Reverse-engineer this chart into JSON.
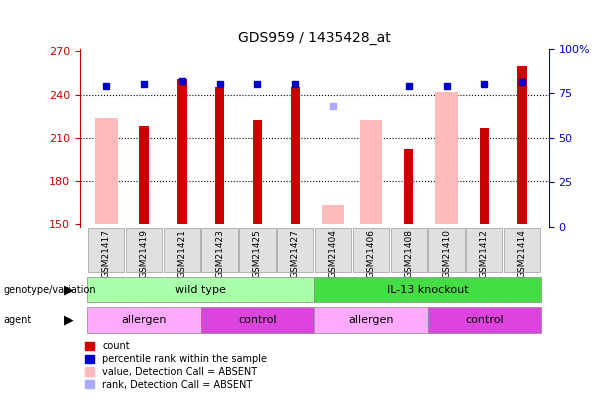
{
  "title": "GDS959 / 1435428_at",
  "samples": [
    "GSM21417",
    "GSM21419",
    "GSM21421",
    "GSM21423",
    "GSM21425",
    "GSM21427",
    "GSM21404",
    "GSM21406",
    "GSM21408",
    "GSM21410",
    "GSM21412",
    "GSM21414"
  ],
  "count_values": [
    null,
    218,
    251,
    245,
    222,
    245,
    null,
    null,
    202,
    null,
    217,
    260
  ],
  "pink_values": [
    224,
    null,
    null,
    null,
    null,
    null,
    163,
    222,
    null,
    242,
    null,
    null
  ],
  "percentile_values": [
    79,
    80,
    82,
    80,
    80,
    80,
    null,
    null,
    79,
    79,
    80,
    81
  ],
  "rank_absent_values": [
    null,
    null,
    null,
    null,
    null,
    null,
    68,
    null,
    null,
    null,
    null,
    null
  ],
  "ylim_left": [
    148,
    272
  ],
  "ylim_right": [
    0,
    100
  ],
  "yticks_left": [
    150,
    180,
    210,
    240,
    270
  ],
  "yticks_right": [
    0,
    25,
    50,
    75,
    100
  ],
  "ytick_labels_right": [
    "0",
    "25",
    "50",
    "75",
    "100%"
  ],
  "grid_lines": [
    180,
    210,
    240
  ],
  "genotype_groups": [
    {
      "label": "wild type",
      "start": 0,
      "end": 6,
      "color": "#aaffaa"
    },
    {
      "label": "IL-13 knockout",
      "start": 6,
      "end": 12,
      "color": "#44dd44"
    }
  ],
  "agent_groups": [
    {
      "label": "allergen",
      "start": 0,
      "end": 3,
      "color": "#ffaaff"
    },
    {
      "label": "control",
      "start": 3,
      "end": 6,
      "color": "#dd44dd"
    },
    {
      "label": "allergen",
      "start": 6,
      "end": 9,
      "color": "#ffaaff"
    },
    {
      "label": "control",
      "start": 9,
      "end": 12,
      "color": "#dd44dd"
    }
  ],
  "legend_items": [
    {
      "label": "count",
      "color": "#cc0000"
    },
    {
      "label": "percentile rank within the sample",
      "color": "#0000cc"
    },
    {
      "label": "value, Detection Call = ABSENT",
      "color": "#ffbbbb"
    },
    {
      "label": "rank, Detection Call = ABSENT",
      "color": "#aaaaff"
    }
  ],
  "left_axis_color": "#cc0000",
  "right_axis_color": "#0000cc",
  "ybase": 150
}
